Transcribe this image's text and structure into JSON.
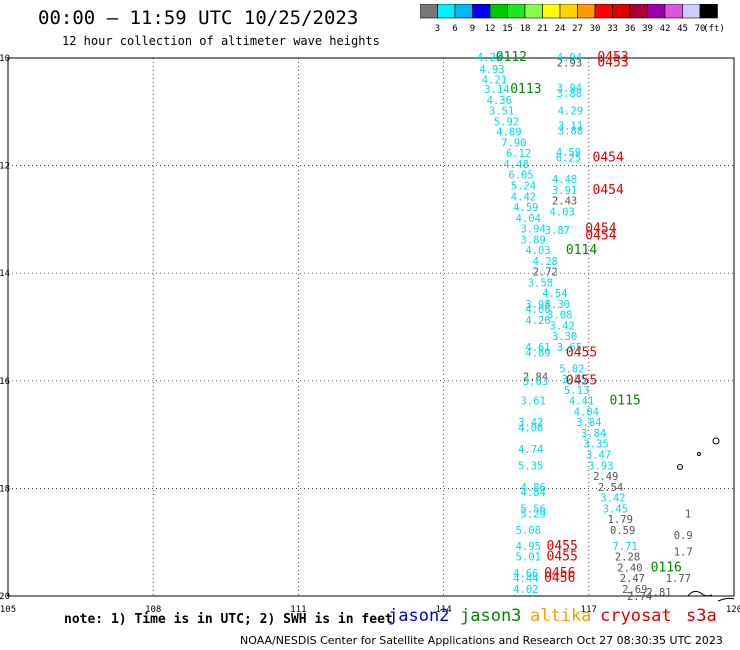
{
  "header": {
    "title": "00:00 – 11:59 UTC 10/25/2023",
    "subtitle": "12 hour collection of altimeter wave heights"
  },
  "color_scale": {
    "unit": "(ft)",
    "ticks": [
      "3",
      "6",
      "9",
      "12",
      "15",
      "18",
      "21",
      "24",
      "27",
      "30",
      "33",
      "36",
      "39",
      "42",
      "45",
      "70"
    ],
    "colors": [
      "#777777",
      "#00f0ff",
      "#00b4ff",
      "#0000ff",
      "#00c800",
      "#22e622",
      "#88ff44",
      "#ffff00",
      "#ffd200",
      "#ff9900",
      "#ff0000",
      "#dd0000",
      "#aa0033",
      "#9900aa",
      "#dd55dd",
      "#ccccff",
      "#000000"
    ]
  },
  "map": {
    "lon_labels": [
      "105",
      "108",
      "111",
      "114",
      "117",
      "120"
    ],
    "lat_labels": [
      "10",
      "12",
      "14",
      "16",
      "18",
      "20"
    ],
    "lat_ticks": [
      10,
      12,
      14,
      16,
      18,
      20
    ],
    "lon_ticks": [
      105,
      108,
      111,
      114,
      117,
      120
    ],
    "observations": [
      {
        "text": "4.23",
        "lon": 114.95,
        "lat": 9.98,
        "c": "cyan"
      },
      {
        "text": "0112",
        "lon": 115.4,
        "lat": 9.98,
        "c": "green"
      },
      {
        "text": "4.94",
        "lon": 116.6,
        "lat": 9.98,
        "c": "cyan"
      },
      {
        "text": "0453",
        "lon": 117.5,
        "lat": 9.98,
        "c": "red"
      },
      {
        "text": "2.93",
        "lon": 116.6,
        "lat": 10.08,
        "c": "gray"
      },
      {
        "text": "0453",
        "lon": 117.5,
        "lat": 10.08,
        "c": "red"
      },
      {
        "text": "4.93",
        "lon": 115.0,
        "lat": 10.2,
        "c": "cyan"
      },
      {
        "text": "4.21",
        "lon": 115.05,
        "lat": 10.4,
        "c": "cyan"
      },
      {
        "text": "3.14",
        "lon": 115.1,
        "lat": 10.58,
        "c": "cyan"
      },
      {
        "text": "0113",
        "lon": 115.7,
        "lat": 10.58,
        "c": "green"
      },
      {
        "text": "3.94",
        "lon": 116.6,
        "lat": 10.55,
        "c": "cyan"
      },
      {
        "text": "3.88",
        "lon": 116.6,
        "lat": 10.65,
        "c": "cyan"
      },
      {
        "text": "4.36",
        "lon": 115.15,
        "lat": 10.78,
        "c": "cyan"
      },
      {
        "text": "3.51",
        "lon": 115.2,
        "lat": 10.98,
        "c": "cyan"
      },
      {
        "text": "4.29",
        "lon": 116.62,
        "lat": 10.98,
        "c": "cyan"
      },
      {
        "text": "5.92",
        "lon": 115.3,
        "lat": 11.18,
        "c": "cyan"
      },
      {
        "text": "3.11",
        "lon": 116.62,
        "lat": 11.25,
        "c": "cyan"
      },
      {
        "text": "4.89",
        "lon": 115.35,
        "lat": 11.37,
        "c": "cyan"
      },
      {
        "text": "3.88",
        "lon": 116.62,
        "lat": 11.35,
        "c": "cyan"
      },
      {
        "text": "7.90",
        "lon": 115.45,
        "lat": 11.57,
        "c": "cyan"
      },
      {
        "text": "6.12",
        "lon": 115.55,
        "lat": 11.77,
        "c": "cyan"
      },
      {
        "text": "4.59",
        "lon": 116.58,
        "lat": 11.75,
        "c": "cyan"
      },
      {
        "text": "0454",
        "lon": 117.4,
        "lat": 11.85,
        "c": "red"
      },
      {
        "text": "6.25",
        "lon": 116.58,
        "lat": 11.85,
        "c": "cyan"
      },
      {
        "text": "4.48",
        "lon": 115.5,
        "lat": 11.97,
        "c": "cyan"
      },
      {
        "text": "6.05",
        "lon": 115.6,
        "lat": 12.17,
        "c": "cyan"
      },
      {
        "text": "4.48",
        "lon": 116.5,
        "lat": 12.25,
        "c": "cyan"
      },
      {
        "text": "5.24",
        "lon": 115.65,
        "lat": 12.37,
        "c": "cyan"
      },
      {
        "text": "3.91",
        "lon": 116.5,
        "lat": 12.45,
        "c": "cyan"
      },
      {
        "text": "0454",
        "lon": 117.4,
        "lat": 12.45,
        "c": "red"
      },
      {
        "text": "4.42",
        "lon": 115.65,
        "lat": 12.57,
        "c": "cyan"
      },
      {
        "text": "2.43",
        "lon": 116.5,
        "lat": 12.65,
        "c": "gray"
      },
      {
        "text": "4.59",
        "lon": 115.7,
        "lat": 12.77,
        "c": "cyan"
      },
      {
        "text": "4.03",
        "lon": 116.45,
        "lat": 12.85,
        "c": "cyan"
      },
      {
        "text": "4.04",
        "lon": 115.75,
        "lat": 12.97,
        "c": "cyan"
      },
      {
        "text": "3.94",
        "lon": 115.85,
        "lat": 13.17,
        "c": "cyan"
      },
      {
        "text": "3.87",
        "lon": 116.35,
        "lat": 13.2,
        "c": "cyan"
      },
      {
        "text": "0454",
        "lon": 117.25,
        "lat": 13.17,
        "c": "red"
      },
      {
        "text": "0454",
        "lon": 117.25,
        "lat": 13.3,
        "c": "red"
      },
      {
        "text": "3.89",
        "lon": 115.85,
        "lat": 13.37,
        "c": "cyan"
      },
      {
        "text": "4.03",
        "lon": 115.95,
        "lat": 13.57,
        "c": "cyan"
      },
      {
        "text": "0114",
        "lon": 116.85,
        "lat": 13.57,
        "c": "green"
      },
      {
        "text": "4.28",
        "lon": 116.1,
        "lat": 13.77,
        "c": "cyan"
      },
      {
        "text": "2.72",
        "lon": 116.1,
        "lat": 13.97,
        "c": "gray"
      },
      {
        "text": "3.58",
        "lon": 116.0,
        "lat": 14.17,
        "c": "cyan"
      },
      {
        "text": "4.54",
        "lon": 116.3,
        "lat": 14.37,
        "c": "cyan"
      },
      {
        "text": "3.98",
        "lon": 115.95,
        "lat": 14.57,
        "c": "cyan"
      },
      {
        "text": "4.30",
        "lon": 116.35,
        "lat": 14.57,
        "c": "cyan"
      },
      {
        "text": "4.06",
        "lon": 115.95,
        "lat": 14.67,
        "c": "cyan"
      },
      {
        "text": "3.08",
        "lon": 116.4,
        "lat": 14.77,
        "c": "cyan"
      },
      {
        "text": "4.26",
        "lon": 115.95,
        "lat": 14.87,
        "c": "cyan"
      },
      {
        "text": "3.42",
        "lon": 116.45,
        "lat": 14.97,
        "c": "cyan"
      },
      {
        "text": "3.30",
        "lon": 116.5,
        "lat": 15.17,
        "c": "cyan"
      },
      {
        "text": "4.61",
        "lon": 115.95,
        "lat": 15.37,
        "c": "cyan"
      },
      {
        "text": "3.65",
        "lon": 116.6,
        "lat": 15.37,
        "c": "cyan"
      },
      {
        "text": "4.69",
        "lon": 115.95,
        "lat": 15.47,
        "c": "cyan"
      },
      {
        "text": "0455",
        "lon": 116.85,
        "lat": 15.47,
        "c": "red"
      },
      {
        "text": "5.02",
        "lon": 116.65,
        "lat": 15.77,
        "c": "cyan"
      },
      {
        "text": "2.84",
        "lon": 115.9,
        "lat": 15.92,
        "c": "gray"
      },
      {
        "text": "3.63",
        "lon": 115.9,
        "lat": 16.0,
        "c": "cyan"
      },
      {
        "text": "3.55",
        "lon": 116.7,
        "lat": 15.97,
        "c": "cyan"
      },
      {
        "text": "0455",
        "lon": 116.85,
        "lat": 15.99,
        "c": "red"
      },
      {
        "text": "5.13",
        "lon": 116.75,
        "lat": 16.17,
        "c": "cyan"
      },
      {
        "text": "3.61",
        "lon": 115.85,
        "lat": 16.37,
        "c": "cyan"
      },
      {
        "text": "4.41",
        "lon": 116.85,
        "lat": 16.37,
        "c": "cyan"
      },
      {
        "text": "0115",
        "lon": 117.75,
        "lat": 16.37,
        "c": "green"
      },
      {
        "text": "4.04",
        "lon": 116.95,
        "lat": 16.57,
        "c": "cyan"
      },
      {
        "text": "3.42",
        "lon": 115.8,
        "lat": 16.77,
        "c": "cyan"
      },
      {
        "text": "4.06",
        "lon": 115.8,
        "lat": 16.87,
        "c": "cyan"
      },
      {
        "text": "3.84",
        "lon": 117.0,
        "lat": 16.77,
        "c": "cyan"
      },
      {
        "text": "3.84",
        "lon": 117.1,
        "lat": 16.97,
        "c": "cyan"
      },
      {
        "text": "4.74",
        "lon": 115.8,
        "lat": 17.27,
        "c": "cyan"
      },
      {
        "text": "3.35",
        "lon": 117.15,
        "lat": 17.17,
        "c": "cyan"
      },
      {
        "text": "3.47",
        "lon": 117.2,
        "lat": 17.37,
        "c": "cyan"
      },
      {
        "text": "5.35",
        "lon": 115.8,
        "lat": 17.57,
        "c": "cyan"
      },
      {
        "text": "3.93",
        "lon": 117.25,
        "lat": 17.57,
        "c": "cyan"
      },
      {
        "text": "2.49",
        "lon": 117.35,
        "lat": 17.77,
        "c": "gray"
      },
      {
        "text": "4.86",
        "lon": 115.85,
        "lat": 17.97,
        "c": "cyan"
      },
      {
        "text": "4.84",
        "lon": 115.85,
        "lat": 18.07,
        "c": "cyan"
      },
      {
        "text": "2.54",
        "lon": 117.45,
        "lat": 17.97,
        "c": "gray"
      },
      {
        "text": "3.42",
        "lon": 117.5,
        "lat": 18.17,
        "c": "cyan"
      },
      {
        "text": "5.56",
        "lon": 115.85,
        "lat": 18.37,
        "c": "cyan"
      },
      {
        "text": "5.29",
        "lon": 115.85,
        "lat": 18.47,
        "c": "cyan"
      },
      {
        "text": "3.45",
        "lon": 117.55,
        "lat": 18.37,
        "c": "cyan"
      },
      {
        "text": "1.79",
        "lon": 117.65,
        "lat": 18.57,
        "c": "gray"
      },
      {
        "text": "5.08",
        "lon": 115.75,
        "lat": 18.77,
        "c": "cyan"
      },
      {
        "text": "0.59",
        "lon": 117.7,
        "lat": 18.77,
        "c": "gray"
      },
      {
        "text": "4.95",
        "lon": 115.75,
        "lat": 19.07,
        "c": "cyan"
      },
      {
        "text": "0455",
        "lon": 116.45,
        "lat": 19.07,
        "c": "red"
      },
      {
        "text": "7.71",
        "lon": 117.75,
        "lat": 19.07,
        "c": "cyan"
      },
      {
        "text": "5.01",
        "lon": 115.75,
        "lat": 19.27,
        "c": "cyan"
      },
      {
        "text": "0455",
        "lon": 116.45,
        "lat": 19.27,
        "c": "red"
      },
      {
        "text": "2.28",
        "lon": 117.8,
        "lat": 19.27,
        "c": "gray"
      },
      {
        "text": "2.40",
        "lon": 117.85,
        "lat": 19.47,
        "c": "gray"
      },
      {
        "text": "0116",
        "lon": 118.6,
        "lat": 19.47,
        "c": "green"
      },
      {
        "text": "4.66",
        "lon": 115.7,
        "lat": 19.57,
        "c": "cyan"
      },
      {
        "text": "0456",
        "lon": 116.4,
        "lat": 19.57,
        "c": "red"
      },
      {
        "text": "4.44",
        "lon": 115.7,
        "lat": 19.67,
        "c": "cyan"
      },
      {
        "text": "0456",
        "lon": 116.4,
        "lat": 19.67,
        "c": "red"
      },
      {
        "text": "2.47",
        "lon": 117.9,
        "lat": 19.67,
        "c": "gray"
      },
      {
        "text": "2.69",
        "lon": 117.95,
        "lat": 19.87,
        "c": "gray"
      },
      {
        "text": "4.02",
        "lon": 115.7,
        "lat": 19.87,
        "c": "cyan"
      },
      {
        "text": "2.74",
        "lon": 118.05,
        "lat": 20.0,
        "c": "gray"
      },
      {
        "text": "2.81",
        "lon": 118.45,
        "lat": 19.93,
        "c": "gray"
      },
      {
        "text": "0.9",
        "lon": 118.95,
        "lat": 18.87,
        "c": "gray"
      },
      {
        "text": "1.7",
        "lon": 118.95,
        "lat": 19.17,
        "c": "gray"
      },
      {
        "text": "1.77",
        "lon": 118.85,
        "lat": 19.67,
        "c": "gray"
      },
      {
        "text": "1",
        "lon": 119.05,
        "lat": 18.47,
        "c": "gray"
      }
    ]
  },
  "legend": {
    "note": "note: 1) Time is in UTC; 2) SWH is in feet",
    "sats": [
      {
        "label": "jason2",
        "color": "#0000cc"
      },
      {
        "label": "jason3",
        "color": "#008800"
      },
      {
        "label": "altika",
        "color": "#ff9900"
      },
      {
        "label": "cryosat",
        "color": "#dd0000"
      },
      {
        "label": "s3a",
        "color": "#cc0000"
      }
    ]
  },
  "footer": "NOAA/NESDIS Center for Satellite Applications and Research   Oct 27 08:30:35 UTC 2023",
  "obs_colors": {
    "cyan": "#00d8e8",
    "green": "#008800",
    "red": "#e00000",
    "gray": "#555555"
  }
}
